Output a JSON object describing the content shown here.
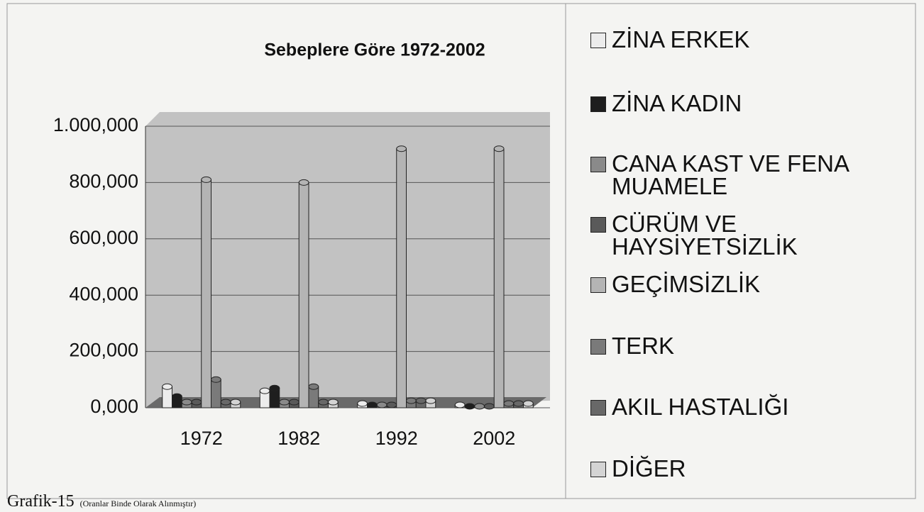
{
  "chart_data": {
    "type": "bar",
    "title": "Sebeplere Göre 1972-2002",
    "categories": [
      "1972",
      "1982",
      "1992",
      "2002"
    ],
    "series": [
      {
        "name": "ZİNA ERKEK",
        "color": "#ececec",
        "values": [
          75,
          60,
          15,
          10
        ]
      },
      {
        "name": "ZİNA KADIN",
        "color": "#1e1e1e",
        "values": [
          40,
          70,
          10,
          5
        ]
      },
      {
        "name": "CANA KAST VE FENA MUAMELE",
        "color": "#8a8a8a",
        "values": [
          20,
          20,
          10,
          5
        ]
      },
      {
        "name": "CÜRÜM VE HAYSİYETSİZLİK",
        "color": "#5a5a5a",
        "values": [
          20,
          20,
          10,
          5
        ]
      },
      {
        "name": "GEÇİMSİZLİK",
        "color": "#b4b4b4",
        "values": [
          810,
          800,
          920,
          920
        ]
      },
      {
        "name": "TERK",
        "color": "#7a7a7a",
        "values": [
          100,
          75,
          25,
          15
        ]
      },
      {
        "name": "AKIL HASTALIĞI",
        "color": "#686868",
        "values": [
          20,
          20,
          25,
          15
        ]
      },
      {
        "name": "DİĞER",
        "color": "#d4d4d4",
        "values": [
          20,
          20,
          25,
          15
        ]
      }
    ],
    "ylim": [
      0,
      1000
    ],
    "yticks": [
      {
        "value": 0,
        "label": "0,000"
      },
      {
        "value": 200,
        "label": "200,000"
      },
      {
        "value": 400,
        "label": "400,000"
      },
      {
        "value": 600,
        "label": "600,000"
      },
      {
        "value": 800,
        "label": "800,000"
      },
      {
        "value": 1000,
        "label": "1.000,000"
      }
    ],
    "grid": true,
    "caption": "Grafik-15",
    "caption_note": "(Oranlar Binde Olarak Alınmıştır)"
  }
}
